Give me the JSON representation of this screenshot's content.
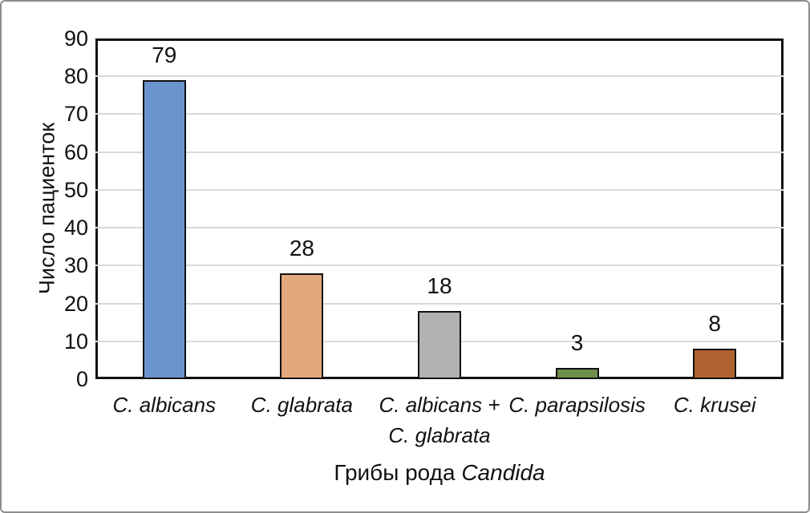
{
  "chart_data": {
    "type": "bar",
    "title": "",
    "categories": [
      [
        "C. albicans"
      ],
      [
        "C. glabrata"
      ],
      [
        "C. albicans +",
        "C. glabrata"
      ],
      [
        "C. parapsilosis"
      ],
      [
        "C. krusei"
      ]
    ],
    "values": [
      79,
      28,
      18,
      3,
      8
    ],
    "value_labels": [
      "79",
      "28",
      "18",
      "3",
      "8"
    ],
    "bar_colors": [
      "#6C94CC",
      "#E3A87C",
      "#B1B1B3",
      "#6E8F4C",
      "#B06231"
    ],
    "bar_border_color": "#111111",
    "ylabel": "Число пациенток",
    "xlabel_prefix": "Грибы рода",
    "xlabel_italic": "Candida",
    "ylim": [
      0,
      90
    ],
    "ytick_step": 10,
    "yticks": [
      "0",
      "10",
      "20",
      "30",
      "40",
      "50",
      "60",
      "70",
      "80",
      "90"
    ],
    "grid": "horizontal",
    "gridline_color": "#D9D9D9",
    "axis_color": "#111111",
    "frame_border_color": "#8C8C8C",
    "legend": "none"
  }
}
